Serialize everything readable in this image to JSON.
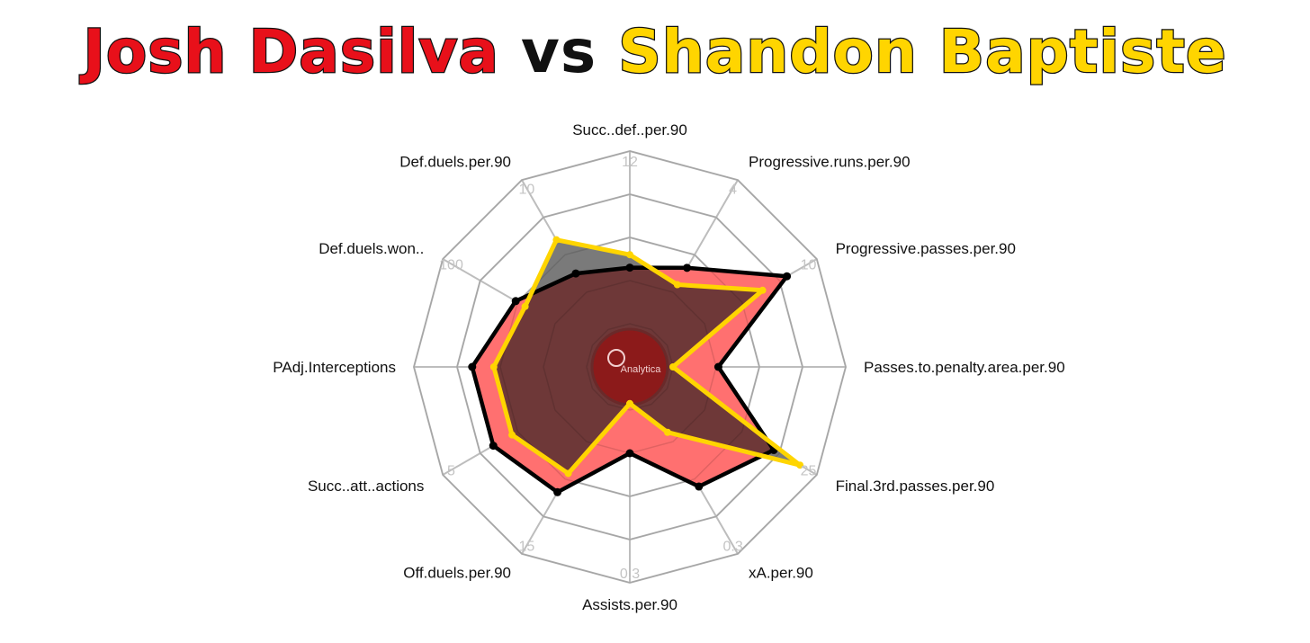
{
  "title": {
    "player1": "Josh Dasilva",
    "vs": "vs",
    "player2": "Shandon Baptiste"
  },
  "colors": {
    "player1": "#e8101a",
    "player2": "#ffd500",
    "grid": "#bdbdbd",
    "fill_main": "#ff7070",
    "fill_overlap": "#6e3838",
    "fill_excess": "#7a7a7a"
  },
  "logo": {
    "text": "Analytica"
  },
  "chart_data": {
    "type": "radar",
    "axes": [
      "Succ..def..per.90",
      "Progressive.runs.per.90",
      "Progressive.passes.per.90",
      "Passes.to.penalty.area.per.90",
      "Final.3rd.passes.per.90",
      "xA.per.90",
      "Assists.per.90",
      "Off.duels.per.90",
      "Succ..att..actions",
      "PAdj.Interceptions",
      "Def.duels.won..",
      "Def.duels.per.90"
    ],
    "tick_labels": [
      "12",
      "4",
      "10",
      "",
      "25",
      "0.3",
      "0.3",
      "15",
      "5",
      "",
      "100",
      "10"
    ],
    "rings": 5,
    "series": [
      {
        "name": "Josh Dasilva",
        "values_fraction": [
          0.46,
          0.53,
          0.84,
          0.41,
          0.77,
          0.64,
          0.4,
          0.67,
          0.73,
          0.73,
          0.61,
          0.5
        ]
      },
      {
        "name": "Shandon Baptiste",
        "values_fraction": [
          0.52,
          0.44,
          0.71,
          0.2,
          0.91,
          0.35,
          0.17,
          0.57,
          0.63,
          0.63,
          0.56,
          0.68
        ]
      }
    ]
  }
}
